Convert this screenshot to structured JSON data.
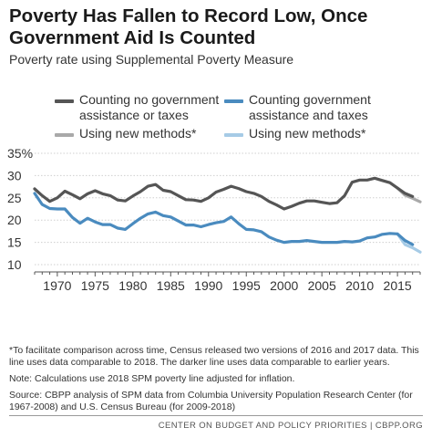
{
  "title": "Poverty Has Fallen to Record Low, Once Government Aid Is Counted",
  "subtitle": "Poverty rate using Supplemental Poverty Measure",
  "legend": [
    {
      "label_line1": "Counting no government",
      "label_line2": "assistance or taxes",
      "color": "#555555"
    },
    {
      "label_line1": "Counting government",
      "label_line2": "assistance and taxes",
      "color": "#4a8bbf"
    },
    {
      "label_line1": "Using new methods*",
      "label_line2": "",
      "color": "#a9a9a9"
    },
    {
      "label_line1": "Using new methods*",
      "label_line2": "",
      "color": "#a6cbe6"
    }
  ],
  "notes": {
    "footnote": "*To facilitate comparison across time, Census released two versions of 2016 and 2017 data. This line uses data comparable to 2018. The darker line uses data comparable to earlier years.",
    "note": "Note: Calculations use 2018 SPM poverty line adjusted for inflation.",
    "source": "Source: CBPP analysis of SPM data from Columbia University Population Research Center (for 1967-2008) and U.S. Census Bureau (for 2009-2018)"
  },
  "footer": "CENTER ON BUDGET AND POLICY PRIORITIES | CBPP.ORG",
  "chart_data": {
    "type": "line",
    "title": "Poverty Has Fallen to Record Low, Once Government Aid Is Counted",
    "subtitle": "Poverty rate using Supplemental Poverty Measure",
    "xlabel": "",
    "ylabel": "",
    "xlim": [
      1967,
      2018
    ],
    "ylim": [
      10,
      35
    ],
    "x_ticks": [
      1970,
      1975,
      1980,
      1985,
      1990,
      1995,
      2000,
      2005,
      2010,
      2015
    ],
    "y_ticks": [
      10,
      15,
      20,
      25,
      30,
      35
    ],
    "y_tick_labels": [
      "10",
      "15",
      "20",
      "25",
      "30",
      "35%"
    ],
    "grid": "horizontal",
    "series": [
      {
        "name": "Counting no government assistance or taxes",
        "color": "#555555",
        "x": [
          1967,
          1968,
          1969,
          1970,
          1971,
          1972,
          1973,
          1974,
          1975,
          1976,
          1977,
          1978,
          1979,
          1980,
          1981,
          1982,
          1983,
          1984,
          1985,
          1986,
          1987,
          1988,
          1989,
          1990,
          1991,
          1992,
          1993,
          1994,
          1995,
          1996,
          1997,
          1998,
          1999,
          2000,
          2001,
          2002,
          2003,
          2004,
          2005,
          2006,
          2007,
          2008,
          2009,
          2010,
          2011,
          2012,
          2013,
          2014,
          2015,
          2016,
          2017
        ],
        "values": [
          27.0,
          25.5,
          24.2,
          25.0,
          26.5,
          25.7,
          24.8,
          25.9,
          26.6,
          25.9,
          25.5,
          24.5,
          24.3,
          25.4,
          26.4,
          27.6,
          28.0,
          26.7,
          26.4,
          25.5,
          24.6,
          24.5,
          24.2,
          25.0,
          26.3,
          26.9,
          27.6,
          27.1,
          26.4,
          26.0,
          25.3,
          24.2,
          23.4,
          22.5,
          23.1,
          23.8,
          24.3,
          24.3,
          24.0,
          23.7,
          23.9,
          25.5,
          28.5,
          29.0,
          29.0,
          29.4,
          28.9,
          28.4,
          27.2,
          26.0,
          25.3
        ]
      },
      {
        "name": "Counting government assistance and taxes",
        "color": "#4a8bbf",
        "x": [
          1967,
          1968,
          1969,
          1970,
          1971,
          1972,
          1973,
          1974,
          1975,
          1976,
          1977,
          1978,
          1979,
          1980,
          1981,
          1982,
          1983,
          1984,
          1985,
          1986,
          1987,
          1988,
          1989,
          1990,
          1991,
          1992,
          1993,
          1994,
          1995,
          1996,
          1997,
          1998,
          1999,
          2000,
          2001,
          2002,
          2003,
          2004,
          2005,
          2006,
          2007,
          2008,
          2009,
          2010,
          2011,
          2012,
          2013,
          2014,
          2015,
          2016,
          2017
        ],
        "values": [
          26.0,
          23.5,
          22.6,
          22.5,
          22.5,
          20.6,
          19.3,
          20.4,
          19.6,
          19.0,
          19.0,
          18.2,
          17.9,
          19.2,
          20.4,
          21.4,
          21.8,
          21.0,
          20.7,
          19.8,
          18.9,
          18.9,
          18.5,
          19.0,
          19.4,
          19.7,
          20.7,
          19.2,
          17.9,
          17.8,
          17.4,
          16.2,
          15.5,
          15.0,
          15.2,
          15.2,
          15.4,
          15.2,
          15.0,
          15.0,
          15.0,
          15.2,
          15.1,
          15.3,
          16.0,
          16.2,
          16.8,
          17.0,
          16.9,
          15.4,
          14.5
        ]
      },
      {
        "name": "Using new methods*",
        "color": "#a9a9a9",
        "x": [
          2015,
          2016,
          2017,
          2018
        ],
        "values": [
          27.2,
          25.6,
          24.9,
          24.1
        ]
      },
      {
        "name": "Using new methods*",
        "color": "#a6cbe6",
        "x": [
          2015,
          2016,
          2017,
          2018
        ],
        "values": [
          16.9,
          14.5,
          13.8,
          12.8
        ]
      }
    ]
  }
}
